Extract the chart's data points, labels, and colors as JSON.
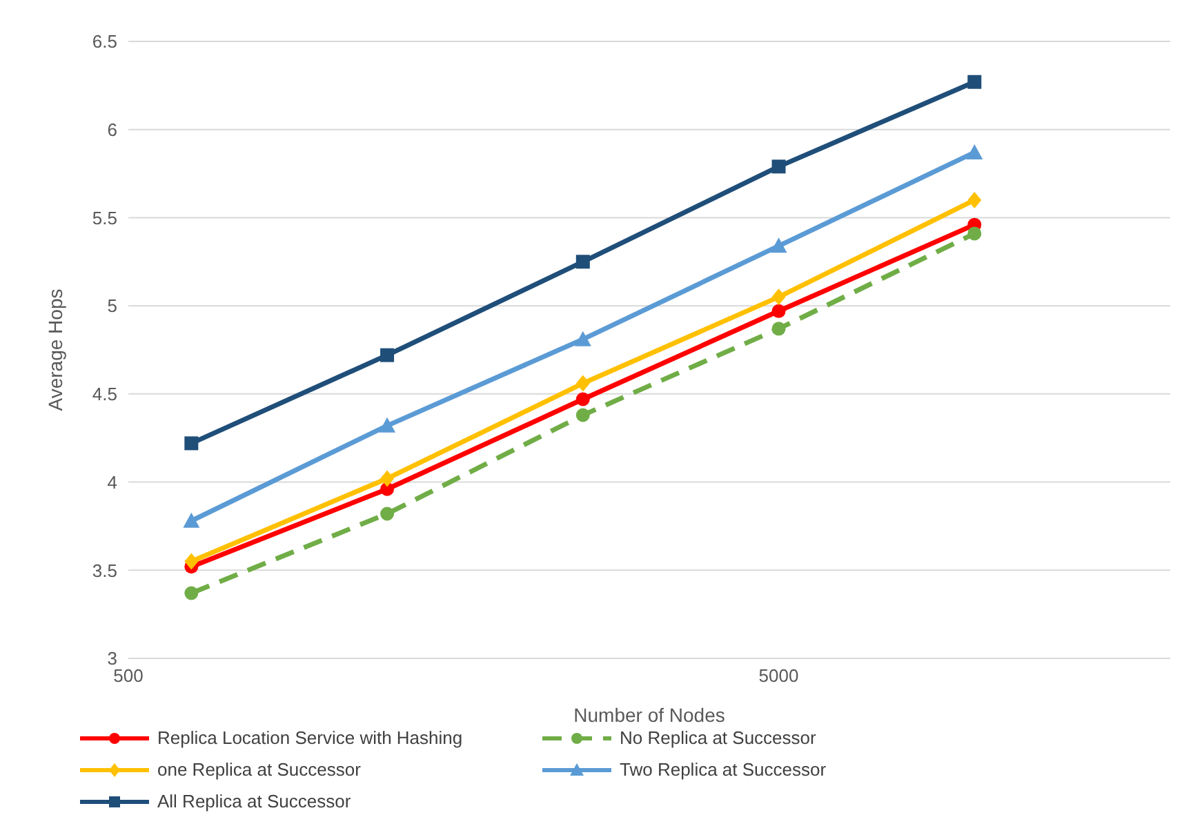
{
  "chart_data": {
    "type": "line",
    "xlabel": "Number of Nodes",
    "ylabel": "Average Hops",
    "x": [
      625,
      1250,
      2500,
      5000,
      10000
    ],
    "log": "x",
    "xlim": [
      500,
      20000
    ],
    "xticks": [
      500,
      5000
    ],
    "ylim": [
      3,
      6.5
    ],
    "yticks": [
      3,
      3.5,
      4,
      4.5,
      5,
      5.5,
      6,
      6.5
    ],
    "grid": "y",
    "legend": "bottom",
    "series": [
      {
        "name": "Replica Location Service with Hashing",
        "color": "#ff0000",
        "marker": "circle",
        "line_style": "solid",
        "values": [
          3.52,
          3.96,
          4.47,
          4.97,
          5.46
        ]
      },
      {
        "name": "No Replica at Successor",
        "color": "#70ad47",
        "marker": "circle",
        "line_style": "dashed",
        "values": [
          3.37,
          3.82,
          4.38,
          4.87,
          5.41
        ]
      },
      {
        "name": "one Replica at Successor",
        "color": "#ffc000",
        "marker": "diamond",
        "line_style": "solid",
        "values": [
          3.55,
          4.02,
          4.56,
          5.05,
          5.6
        ]
      },
      {
        "name": "Two Replica at Successor",
        "color": "#5b9bd5",
        "marker": "triangle",
        "line_style": "solid",
        "values": [
          3.78,
          4.32,
          4.81,
          5.34,
          5.87
        ]
      },
      {
        "name": "All Replica at Successor",
        "color": "#1f4e79",
        "marker": "square",
        "line_style": "solid",
        "values": [
          4.22,
          4.72,
          5.25,
          5.79,
          6.27
        ]
      }
    ]
  }
}
